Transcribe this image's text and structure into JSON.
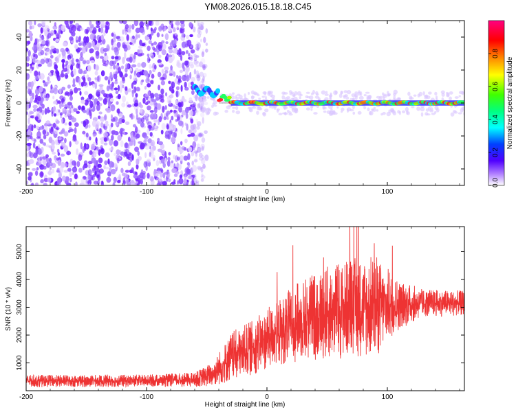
{
  "title": "YM08.2026.015.18.18.C45",
  "chart_data": [
    {
      "type": "heatmap",
      "title": "YM08.2026.015.18.18.C45",
      "xlabel": "Height of straight line (km)",
      "ylabel": "Frequency (Hz)",
      "xlim": [
        -200,
        164
      ],
      "ylim": [
        -50,
        50
      ],
      "x_ticks": [
        "-200",
        "-100",
        "0",
        "100"
      ],
      "y_ticks": [
        "40",
        "20",
        "0",
        "-20",
        "-40"
      ],
      "colorbar": {
        "label": "Normalized spectral amplitude",
        "range": [
          0,
          1
        ],
        "ticks": [
          "0.0",
          "0.2",
          "0.4",
          "0.6",
          "0.8"
        ],
        "colors": [
          "#ffffff",
          "#b080ff",
          "#5000ff",
          "#0040ff",
          "#00ffff",
          "#00ff40",
          "#80ff00",
          "#ffff00",
          "#ff8000",
          "#ff0000",
          "#ff0080"
        ]
      },
      "description_of_features": {
        "noise_region_x": [
          -200,
          -60
        ],
        "signal_track_frequency_hz": 0,
        "signal_track_x_range": [
          -60,
          164
        ],
        "peak_amplitude_x_range": [
          -30,
          164
        ]
      }
    },
    {
      "type": "line",
      "xlabel": "Height of straight line (km)",
      "ylabel": "SNR (10 * v/v)",
      "xlim": [
        -200,
        164
      ],
      "ylim": [
        0,
        5900
      ],
      "x_ticks": [
        "-200",
        "-100",
        "0",
        "100"
      ],
      "y_ticks": [
        "1000",
        "2000",
        "3000",
        "4000",
        "5000"
      ],
      "series": [
        {
          "color": "#ee3333",
          "envelope": [
            {
              "x": -200,
              "mean": 350,
              "spread": 220
            },
            {
              "x": -150,
              "mean": 350,
              "spread": 220
            },
            {
              "x": -100,
              "mean": 360,
              "spread": 220
            },
            {
              "x": -60,
              "mean": 400,
              "spread": 260
            },
            {
              "x": -45,
              "mean": 600,
              "spread": 450
            },
            {
              "x": -30,
              "mean": 1200,
              "spread": 900
            },
            {
              "x": -10,
              "mean": 1600,
              "spread": 1000
            },
            {
              "x": 10,
              "mean": 2100,
              "spread": 1200
            },
            {
              "x": 30,
              "mean": 2600,
              "spread": 1500
            },
            {
              "x": 50,
              "mean": 2800,
              "spread": 1700
            },
            {
              "x": 70,
              "mean": 3000,
              "spread": 1800
            },
            {
              "x": 90,
              "mean": 3000,
              "spread": 1900
            },
            {
              "x": 110,
              "mean": 3100,
              "spread": 900
            },
            {
              "x": 130,
              "mean": 3150,
              "spread": 500
            },
            {
              "x": 164,
              "mean": 3150,
              "spread": 450
            }
          ]
        }
      ]
    }
  ]
}
